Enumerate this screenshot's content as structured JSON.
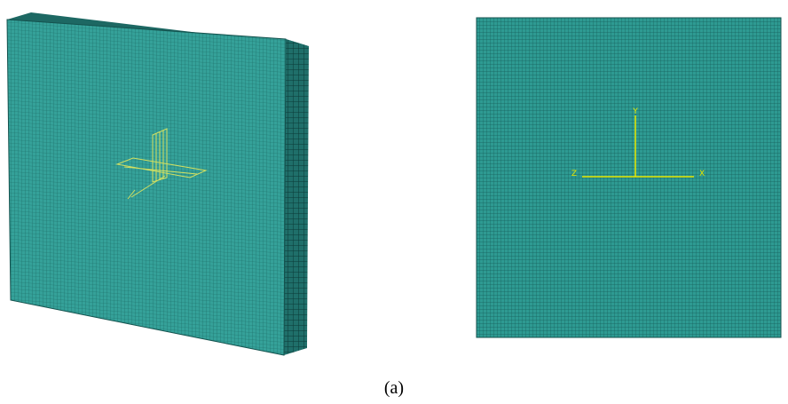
{
  "figure": {
    "caption": "(a)",
    "front_view_axes": {
      "y_label": "Y",
      "x_label": "X",
      "z_label": "Z"
    }
  }
}
